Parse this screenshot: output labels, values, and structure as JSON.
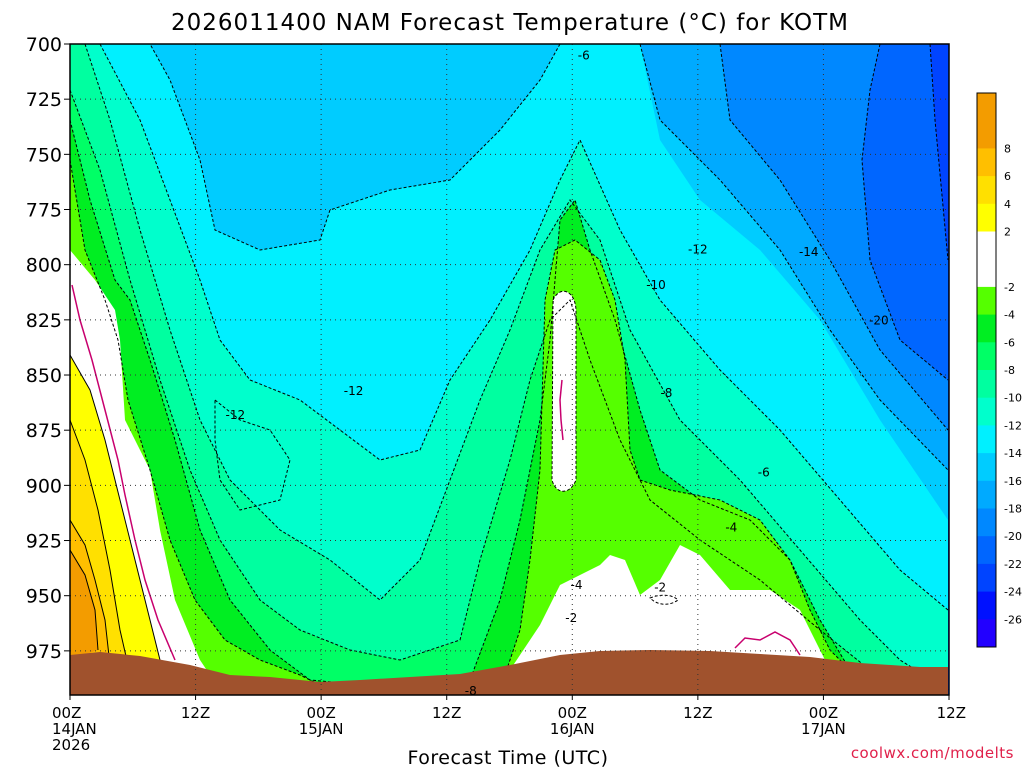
{
  "chart_data": {
    "type": "heatmap",
    "title": "2026011400 NAM Forecast Temperature (°C) for KOTM",
    "xlabel": "Forecast Time (UTC)",
    "ylabel": "",
    "credit": "coolwx.com/modelts",
    "x_range_hours": [
      0,
      84
    ],
    "ylim": [
      700,
      995
    ],
    "y_ticks": [
      700,
      725,
      750,
      775,
      800,
      825,
      850,
      875,
      900,
      925,
      950,
      975
    ],
    "x_ticks": [
      {
        "hour": 0,
        "line1": "00Z",
        "line2": "14JAN",
        "line3": "2026"
      },
      {
        "hour": 12,
        "line1": "12Z",
        "line2": "",
        "line3": ""
      },
      {
        "hour": 24,
        "line1": "00Z",
        "line2": "15JAN",
        "line3": ""
      },
      {
        "hour": 36,
        "line1": "12Z",
        "line2": "",
        "line3": ""
      },
      {
        "hour": 48,
        "line1": "00Z",
        "line2": "16JAN",
        "line3": ""
      },
      {
        "hour": 60,
        "line1": "12Z",
        "line2": "",
        "line3": ""
      },
      {
        "hour": 72,
        "line1": "00Z",
        "line2": "17JAN",
        "line3": ""
      },
      {
        "hour": 84,
        "line1": "12Z",
        "line2": "",
        "line3": ""
      }
    ],
    "colorbar": {
      "levels": [
        {
          "label": "",
          "color": "#f39c00"
        },
        {
          "label": "8",
          "color": "#f39c00"
        },
        {
          "label": "6",
          "color": "#ffbf00"
        },
        {
          "label": "4",
          "color": "#ffe000"
        },
        {
          "label": "2",
          "color": "#ffff00"
        },
        {
          "label": "",
          "color": "#ffffff"
        },
        {
          "label": "-2",
          "color": "#ffffff"
        },
        {
          "label": "-4",
          "color": "#55ff00"
        },
        {
          "label": "-6",
          "color": "#00ee22"
        },
        {
          "label": "-8",
          "color": "#00ff66"
        },
        {
          "label": "-10",
          "color": "#00ffa0"
        },
        {
          "label": "-12",
          "color": "#00ffcc"
        },
        {
          "label": "-14",
          "color": "#00f0ff"
        },
        {
          "label": "-16",
          "color": "#00ccff"
        },
        {
          "label": "-18",
          "color": "#00aaff"
        },
        {
          "label": "-20",
          "color": "#0088ff"
        },
        {
          "label": "-22",
          "color": "#0066ff"
        },
        {
          "label": "-24",
          "color": "#0044ff"
        },
        {
          "label": "-26",
          "color": "#0011ff"
        },
        {
          "label": "",
          "color": "#2200ff"
        }
      ]
    },
    "contour_labels": [
      {
        "text": "-6",
        "hour": 49.1,
        "p": 707
      },
      {
        "text": "-12",
        "hour": 60.0,
        "p": 795
      },
      {
        "text": "-14",
        "hour": 70.6,
        "p": 796
      },
      {
        "text": "-20",
        "hour": 77.3,
        "p": 827
      },
      {
        "text": "-10",
        "hour": 56.0,
        "p": 811
      },
      {
        "text": "-8",
        "hour": 57.0,
        "p": 860
      },
      {
        "text": "-12",
        "hour": 27.1,
        "p": 859
      },
      {
        "text": "-12",
        "hour": 15.8,
        "p": 870
      },
      {
        "text": "-6",
        "hour": 66.3,
        "p": 896
      },
      {
        "text": "-4",
        "hour": 63.2,
        "p": 921
      },
      {
        "text": "-4",
        "hour": 48.4,
        "p": 947
      },
      {
        "text": "-2",
        "hour": 56.4,
        "p": 948
      },
      {
        "text": "-2",
        "hour": 47.9,
        "p": 962
      },
      {
        "text": "-8",
        "hour": 38.3,
        "p": 995
      }
    ],
    "terrain_color": "#a0522d",
    "plot_border_color": "#000000"
  }
}
